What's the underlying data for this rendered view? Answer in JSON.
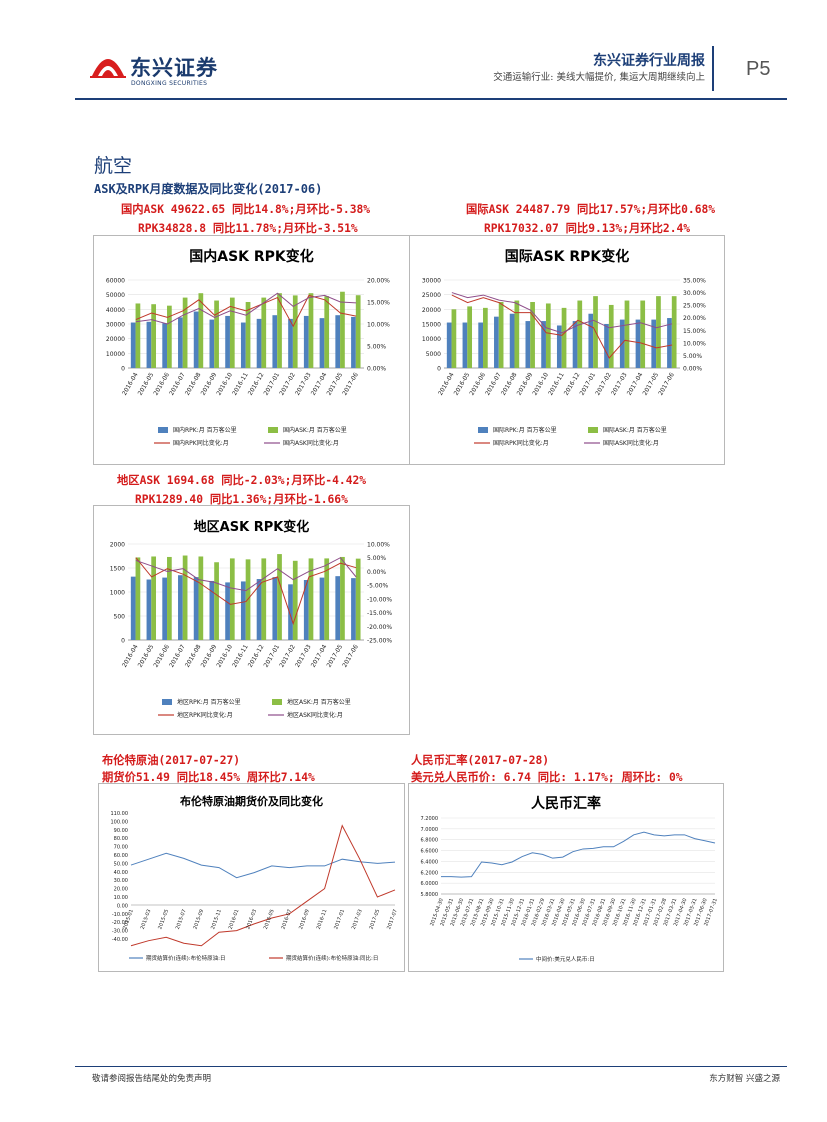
{
  "header": {
    "logo_text": "东兴证券",
    "logo_sub": "DONGXING SECURITIES",
    "title": "东兴证券行业周报",
    "subtitle": "交通运输行业: 美线大幅提价, 集运大周期继续向上",
    "page_no": "P5"
  },
  "section": {
    "title": "航空",
    "subtitle": "ASK及RPK月度数据及同比变化(2017-06)"
  },
  "stats": {
    "domestic_ask": "国内ASK 49622.65 同比14.8%;月环比-5.38%",
    "domestic_rpk": "RPK34828.8 同比11.78%;月环比-3.51%",
    "intl_ask": "国际ASK 24487.79 同比17.57%;月环比0.68%",
    "intl_rpk": "RPK17032.07 同比9.13%;月环比2.4%",
    "region_ask": "地区ASK 1694.68 同比-2.03%;月环比-4.42%",
    "region_rpk": "RPK1289.40 同比1.36%;月环比-1.66%",
    "brent_title": "布伦特原油(2017-07-27)",
    "brent_detail": "期货价51.49 同比18.45% 周环比7.14%",
    "rmb_title": "人民币汇率(2017-07-28)",
    "rmb_detail": "美元兑人民币价: 6.74 同比: 1.17%; 周环比: 0%"
  },
  "footer": {
    "left": "敬请参阅报告结尾处的免责声明",
    "right": "东方财智 兴盛之源"
  },
  "chart_data": [
    {
      "type": "bar",
      "title": "国内ASK RPK变化",
      "categories": [
        "2016-04",
        "2016-05",
        "2016-06",
        "2016-07",
        "2016-08",
        "2016-09",
        "2016-10",
        "2016-11",
        "2016-12",
        "2017-01",
        "2017-02",
        "2017-03",
        "2017-04",
        "2017-05",
        "2017-06"
      ],
      "ylim": [
        0,
        60000
      ],
      "yticks": [
        "60000",
        "50000",
        "40000",
        "30000",
        "20000",
        "10000",
        "0"
      ],
      "y2lim": [
        0,
        20
      ],
      "y2ticks": [
        "20.00%",
        "15.00%",
        "10.00%",
        "5.00%",
        "0.00%"
      ],
      "series": [
        {
          "name": "国内RPK:月 百万客公里",
          "kind": "bar",
          "color": "#4f81bd",
          "values": [
            31000,
            31500,
            30500,
            34500,
            38500,
            33000,
            35500,
            31000,
            33500,
            36000,
            33500,
            35500,
            34000,
            36000,
            34829
          ]
        },
        {
          "name": "国内ASK:月 百万客公里",
          "kind": "bar",
          "color": "#8cbe45",
          "values": [
            44000,
            43500,
            42500,
            48000,
            51000,
            46000,
            48000,
            45000,
            48000,
            51000,
            49500,
            51000,
            49000,
            52000,
            49623
          ]
        },
        {
          "name": "国内RPK同比变化:月",
          "kind": "line",
          "axis": "right",
          "color": "#c0392b",
          "values": [
            11,
            12.5,
            11.5,
            13,
            15.5,
            12,
            14,
            13,
            14.5,
            16,
            9.5,
            16.5,
            15.5,
            12.5,
            11.78
          ]
        },
        {
          "name": "国内ASK同比变化:月",
          "kind": "line",
          "axis": "right",
          "color": "#8e4d8a",
          "values": [
            10.5,
            11,
            10,
            12,
            13.5,
            11.5,
            13,
            12,
            14.5,
            17,
            14,
            16,
            16.5,
            15,
            14.8
          ]
        }
      ]
    },
    {
      "type": "bar",
      "title": "国际ASK RPK变化",
      "categories": [
        "2016-04",
        "2016-05",
        "2016-06",
        "2016-07",
        "2016-08",
        "2016-09",
        "2016-10",
        "2016-11",
        "2016-12",
        "2017-01",
        "2017-02",
        "2017-03",
        "2017-04",
        "2017-05",
        "2017-06"
      ],
      "ylim": [
        0,
        30000
      ],
      "yticks": [
        "30000",
        "25000",
        "20000",
        "15000",
        "10000",
        "5000",
        "0"
      ],
      "y2lim": [
        0,
        35
      ],
      "y2ticks": [
        "35.00%",
        "30.00%",
        "25.00%",
        "20.00%",
        "15.00%",
        "10.00%",
        "5.00%",
        "0.00%"
      ],
      "series": [
        {
          "name": "国际RPK:月 百万客公里",
          "kind": "bar",
          "color": "#4f81bd",
          "values": [
            15500,
            15500,
            15500,
            17500,
            18500,
            16000,
            16000,
            14500,
            16000,
            18500,
            15000,
            16500,
            16500,
            16500,
            17032
          ]
        },
        {
          "name": "国际ASK:月 百万客公里",
          "kind": "bar",
          "color": "#8cbe45",
          "values": [
            20000,
            21000,
            20500,
            22500,
            23000,
            22500,
            22000,
            20500,
            23000,
            24500,
            21500,
            23000,
            23000,
            24500,
            24488
          ]
        },
        {
          "name": "国际RPK同比变化:月",
          "kind": "line",
          "axis": "right",
          "color": "#c0392b",
          "values": [
            29,
            26,
            28,
            26,
            22,
            22,
            14,
            13,
            19,
            16,
            4,
            11,
            10,
            8,
            9.13
          ]
        },
        {
          "name": "国际ASK同比变化:月",
          "kind": "line",
          "axis": "right",
          "color": "#8e4d8a",
          "values": [
            30,
            28,
            29,
            27,
            26,
            23,
            16,
            14,
            17,
            19,
            16,
            17,
            18,
            16,
            17.57
          ]
        }
      ]
    },
    {
      "type": "bar",
      "title": "地区ASK RPK变化",
      "categories": [
        "2016-04",
        "2016-05",
        "2016-06",
        "2016-07",
        "2016-08",
        "2016-09",
        "2016-10",
        "2016-11",
        "2016-12",
        "2017-01",
        "2017-02",
        "2017-03",
        "2017-04",
        "2017-05",
        "2017-06"
      ],
      "ylim": [
        0,
        2000
      ],
      "yticks": [
        "2000",
        "1500",
        "1000",
        "500",
        "0"
      ],
      "y2lim": [
        -25,
        10
      ],
      "y2ticks": [
        "10.00%",
        "5.00%",
        "0.00%",
        "-5.00%",
        "-10.00%",
        "-15.00%",
        "-20.00%",
        "-25.00%"
      ],
      "series": [
        {
          "name": "地区RPK:月 百万客公里",
          "kind": "bar",
          "color": "#4f81bd",
          "values": [
            1320,
            1260,
            1300,
            1350,
            1310,
            1230,
            1200,
            1220,
            1270,
            1310,
            1160,
            1250,
            1300,
            1330,
            1289
          ]
        },
        {
          "name": "地区ASK:月 百万客公里",
          "kind": "bar",
          "color": "#8cbe45",
          "values": [
            1720,
            1740,
            1730,
            1760,
            1740,
            1620,
            1700,
            1680,
            1700,
            1790,
            1650,
            1700,
            1700,
            1730,
            1695
          ]
        },
        {
          "name": "地区RPK同比变化:月",
          "kind": "line",
          "axis": "right",
          "color": "#c0392b",
          "values": [
            5,
            -2,
            1,
            -1,
            -4,
            -8,
            -12,
            -11,
            -4,
            -2,
            -19,
            -2,
            0,
            3,
            1.36
          ]
        },
        {
          "name": "地区ASK同比变化:月",
          "kind": "line",
          "axis": "right",
          "color": "#8e4d8a",
          "values": [
            4,
            2,
            0,
            1,
            -3,
            -4,
            -6,
            -7,
            -3,
            1,
            -3,
            0,
            2,
            5,
            -2.03
          ]
        }
      ]
    },
    {
      "type": "line",
      "title": "布伦特原油期货价及同比变化",
      "ylim": [
        -40,
        110
      ],
      "yticks": [
        "110.00",
        "100.00",
        "90.00",
        "80.00",
        "70.00",
        "60.00",
        "50.00",
        "40.00",
        "30.00",
        "20.00",
        "10.00",
        "0.00",
        "-10.00",
        "-20.00",
        "-30.00",
        "-40.00"
      ],
      "categories": [
        "2015-01",
        "2015-03",
        "2015-05",
        "2015-07",
        "2015-09",
        "2015-11",
        "2016-01",
        "2016-03",
        "2016-05",
        "2016-07",
        "2016-09",
        "2016-11",
        "2017-01",
        "2017-03",
        "2017-05",
        "2017-07"
      ],
      "series": [
        {
          "name": "期货结算价(连续):布伦特原油:日",
          "color": "#4f81bd",
          "values": [
            48,
            55,
            62,
            56,
            48,
            45,
            33,
            39,
            47,
            45,
            47,
            47,
            55,
            52,
            50,
            51.49
          ]
        },
        {
          "name": "期货结算价(连续):布伦特原油:同比:日",
          "color": "#c0392b",
          "values": [
            -48,
            -42,
            -38,
            -45,
            -48,
            -32,
            -30,
            -22,
            -15,
            -10,
            5,
            20,
            95,
            55,
            10,
            18.45
          ]
        }
      ]
    },
    {
      "type": "line",
      "title": "人民币汇率",
      "ylim": [
        5.8,
        7.2
      ],
      "yticks": [
        "7.2000",
        "7.0000",
        "6.8000",
        "6.6000",
        "6.4000",
        "6.2000",
        "6.0000",
        "5.8000"
      ],
      "categories": [
        "2015-04-30",
        "2015-05-31",
        "2015-06-30",
        "2015-07-31",
        "2015-08-31",
        "2015-09-30",
        "2015-10-31",
        "2015-11-30",
        "2015-12-31",
        "2016-01-31",
        "2016-02-29",
        "2016-03-31",
        "2016-04-30",
        "2016-05-31",
        "2016-06-30",
        "2016-07-31",
        "2016-08-31",
        "2016-09-30",
        "2016-10-31",
        "2016-11-30",
        "2016-12-31",
        "2017-01-31",
        "2017-02-28",
        "2017-03-31",
        "2017-04-30",
        "2017-05-31",
        "2017-06-30",
        "2017-07-31"
      ],
      "series": [
        {
          "name": "中间价:美元兑人民币:日",
          "color": "#4f81bd",
          "values": [
            6.12,
            6.12,
            6.11,
            6.12,
            6.39,
            6.37,
            6.34,
            6.39,
            6.49,
            6.56,
            6.53,
            6.46,
            6.48,
            6.58,
            6.63,
            6.64,
            6.67,
            6.67,
            6.77,
            6.89,
            6.94,
            6.89,
            6.87,
            6.89,
            6.89,
            6.82,
            6.78,
            6.74
          ]
        }
      ]
    }
  ]
}
